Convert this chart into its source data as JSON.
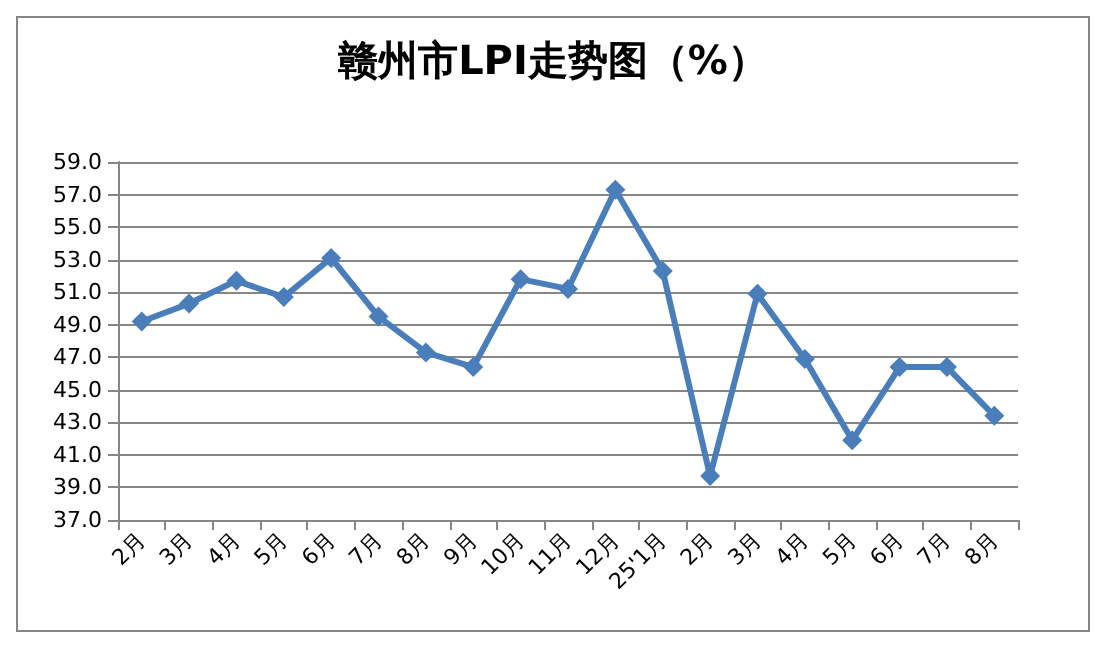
{
  "chart_data": {
    "type": "line",
    "title": "赣州市LPI走势图（%）",
    "categories": [
      "2月",
      "3月",
      "4月",
      "5月",
      "6月",
      "7月",
      "8月",
      "9月",
      "10月",
      "11月",
      "12月",
      "25'1月",
      "2月",
      "3月",
      "4月",
      "5月",
      "6月",
      "7月",
      "8月"
    ],
    "series": [
      {
        "color": "#4a7ebb",
        "values": [
          49.2,
          50.3,
          51.7,
          50.7,
          53.1,
          49.5,
          47.3,
          46.4,
          51.8,
          51.2,
          57.3,
          52.3,
          39.7,
          50.9,
          46.9,
          41.9,
          46.4,
          46.4,
          43.4
        ]
      }
    ],
    "ylim": [
      37,
      59
    ],
    "yticks": [
      {
        "value": 37,
        "label": "37.0"
      },
      {
        "value": 39,
        "label": "39.0"
      },
      {
        "value": 41,
        "label": "41.0"
      },
      {
        "value": 43,
        "label": "43.0"
      },
      {
        "value": 45,
        "label": "45.0"
      },
      {
        "value": 47,
        "label": "47.0"
      },
      {
        "value": 49,
        "label": "49.0"
      },
      {
        "value": 51,
        "label": "51.0"
      },
      {
        "value": 53,
        "label": "53.0"
      },
      {
        "value": 55,
        "label": "55.0"
      },
      {
        "value": 57,
        "label": "57.0"
      },
      {
        "value": 59,
        "label": "59.0"
      }
    ],
    "grid": "y",
    "marker": "diamond"
  }
}
